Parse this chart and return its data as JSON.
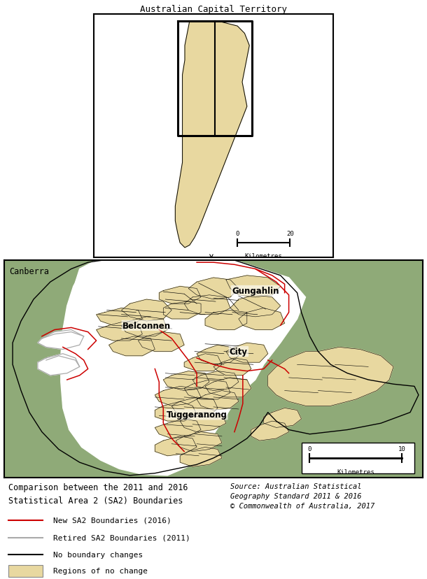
{
  "title_inset": "Australian Capital Territory",
  "label_canberra": "Canberra",
  "inset_scale_text": "0      20",
  "inset_scale_label": "Kilometres",
  "main_scale_label": "Kilometres",
  "legend_title": "Comparison between the 2011 and 2016\nStatistical Area 2 (SA2) Boundaries",
  "source_text": "Source: Australian Statistical\nGeography Standard 2011 & 2016\n© Commonwealth of Australia, 2017",
  "legend_items": [
    {
      "label": "New SA2 Boundaries (2016)",
      "color": "#cc0000",
      "lw": 1.5,
      "style": "-"
    },
    {
      "label": "Retired SA2 Boundaries (2011)",
      "color": "#aaaaaa",
      "lw": 1.5,
      "style": "-"
    },
    {
      "label": "No boundary changes",
      "color": "#000000",
      "lw": 1.5,
      "style": "-"
    },
    {
      "label": "Regions of no change",
      "color": "#e8d8a0",
      "lw": 0.8,
      "style": "rect"
    }
  ],
  "background_color": "#ffffff",
  "map_bg_color": "#8faa78",
  "urban_color": "#e8d8a0",
  "inset_bg_color": "#ffffff",
  "figsize": [
    6.1,
    8.29
  ],
  "dpi": 100
}
